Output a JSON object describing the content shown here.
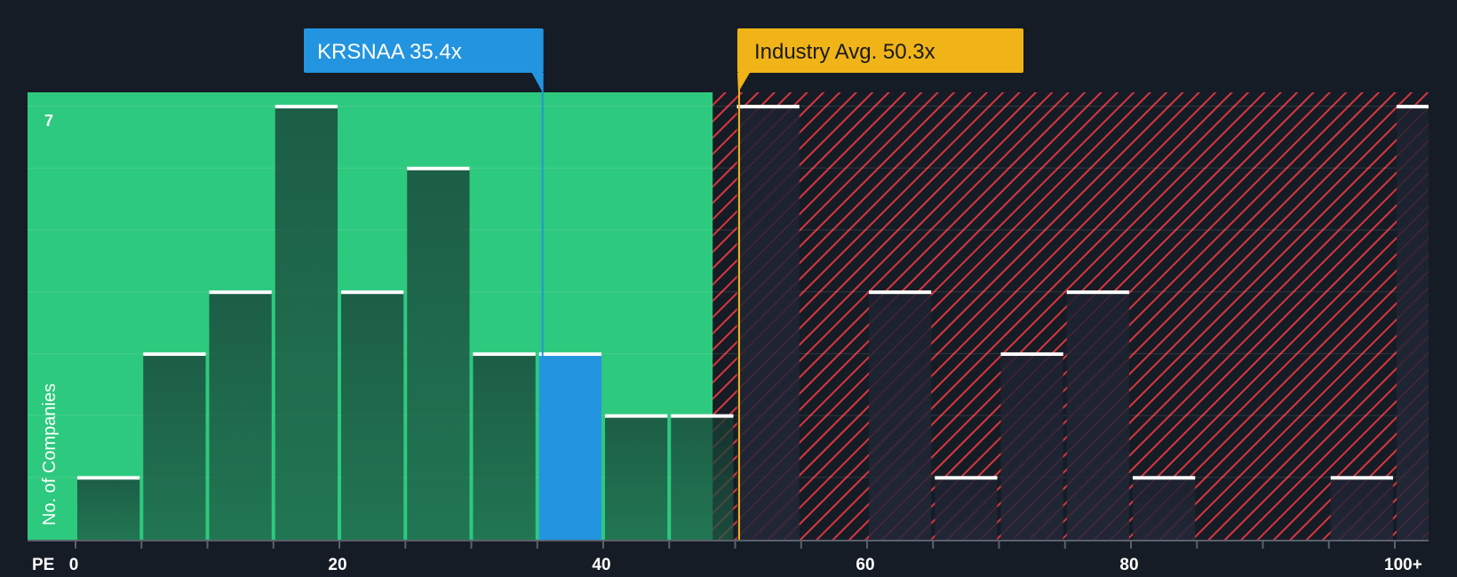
{
  "chart_data": {
    "type": "bar",
    "title": "",
    "xlabel": "PE",
    "ylabel": "No. of Companies",
    "xlim": [
      0,
      100
    ],
    "ylim": [
      0,
      7
    ],
    "x_ticks": [
      {
        "value": 0,
        "label": "0"
      },
      {
        "value": 20,
        "label": "20"
      },
      {
        "value": 40,
        "label": "40"
      },
      {
        "value": 60,
        "label": "60"
      },
      {
        "value": 80,
        "label": "80"
      },
      {
        "value": 100,
        "label": "100+"
      }
    ],
    "y_ticks": [
      {
        "value": 7,
        "label": "7"
      }
    ],
    "bin_width": 5,
    "bins": [
      {
        "start": 0,
        "count": 1
      },
      {
        "start": 5,
        "count": 3
      },
      {
        "start": 10,
        "count": 4
      },
      {
        "start": 15,
        "count": 7
      },
      {
        "start": 20,
        "count": 4
      },
      {
        "start": 25,
        "count": 6
      },
      {
        "start": 30,
        "count": 3
      },
      {
        "start": 35,
        "count": 3,
        "highlight": true
      },
      {
        "start": 40,
        "count": 2
      },
      {
        "start": 45,
        "count": 2
      },
      {
        "start": 50,
        "count": 7
      },
      {
        "start": 60,
        "count": 4
      },
      {
        "start": 65,
        "count": 1
      },
      {
        "start": 70,
        "count": 3
      },
      {
        "start": 75,
        "count": 4
      },
      {
        "start": 80,
        "count": 1
      },
      {
        "start": 95,
        "count": 1
      },
      {
        "start": 100,
        "count": 7
      }
    ],
    "company": {
      "label": "KRSNAA 35.4x",
      "value": 35.4
    },
    "industry_avg": {
      "label": "Industry Avg. 50.3x",
      "value": 50.3
    },
    "zones": {
      "fair_until": 48.3
    },
    "colors": {
      "background": "#161c25",
      "fair_zone": "#2dc97e",
      "over_zone": "#161c25",
      "hatch": "#d9363e",
      "bar": "#1f4a3e",
      "highlight_bar": "#2394e0",
      "company_callout": "#2394e0",
      "industry_callout": "#f0b418"
    }
  }
}
